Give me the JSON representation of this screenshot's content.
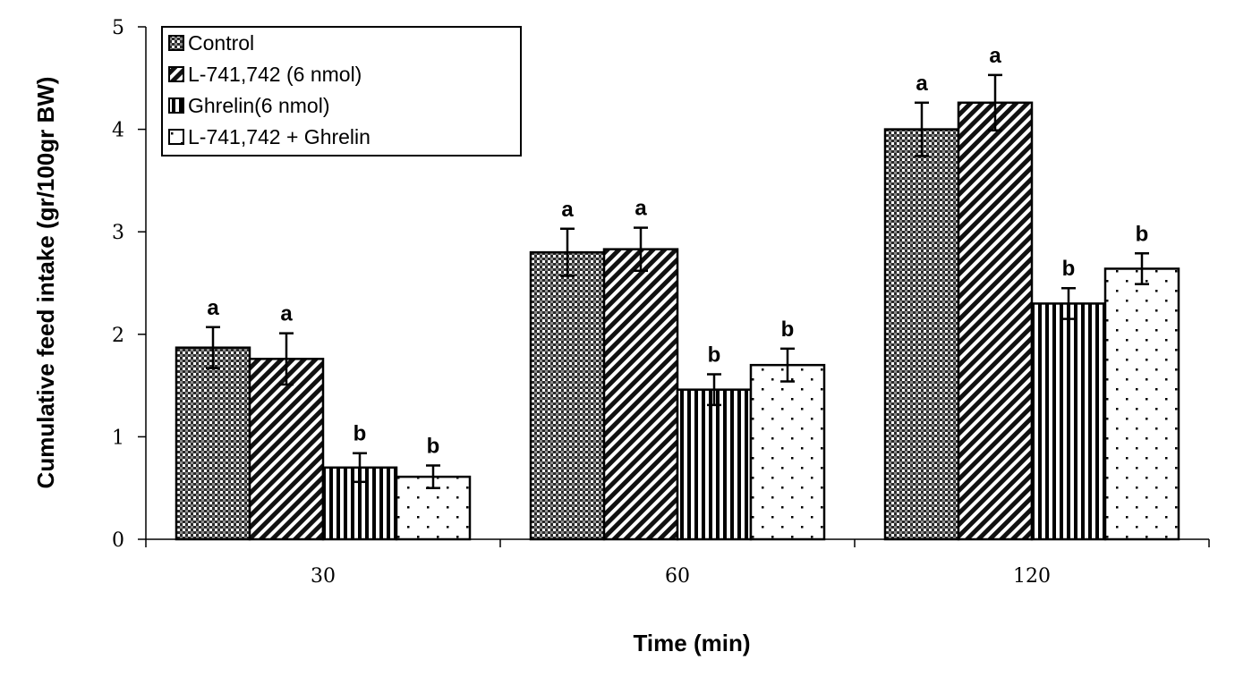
{
  "chart_data": {
    "type": "bar",
    "title": "",
    "xlabel": "Time (min)",
    "ylabel": "Cumulative feed intake (gr/100gr BW)",
    "ylim": [
      0,
      5
    ],
    "yticks": [
      "0",
      "1",
      "2",
      "3",
      "4",
      "5"
    ],
    "categories": [
      "30",
      "60",
      "120"
    ],
    "grid": false,
    "legend_position": "top-left",
    "series": [
      {
        "name": "Control",
        "pattern": "checker",
        "values": [
          1.87,
          2.8,
          4.0
        ],
        "errors": [
          0.2,
          0.23,
          0.26
        ],
        "labels": [
          "a",
          "a",
          "a"
        ]
      },
      {
        "name": "L-741,742 (6 nmol)",
        "pattern": "diagonal",
        "values": [
          1.76,
          2.83,
          4.26
        ],
        "errors": [
          0.25,
          0.21,
          0.27
        ],
        "labels": [
          "a",
          "a",
          "a"
        ]
      },
      {
        "name": "Ghrelin(6 nmol)",
        "pattern": "vertical",
        "values": [
          0.7,
          1.46,
          2.3
        ],
        "errors": [
          0.14,
          0.15,
          0.15
        ],
        "labels": [
          "b",
          "b",
          "b"
        ]
      },
      {
        "name": "L-741,742  + Ghrelin",
        "pattern": "dots",
        "values": [
          0.61,
          1.7,
          2.64
        ],
        "errors": [
          0.11,
          0.16,
          0.15
        ],
        "labels": [
          "b",
          "b",
          "b"
        ]
      }
    ]
  }
}
